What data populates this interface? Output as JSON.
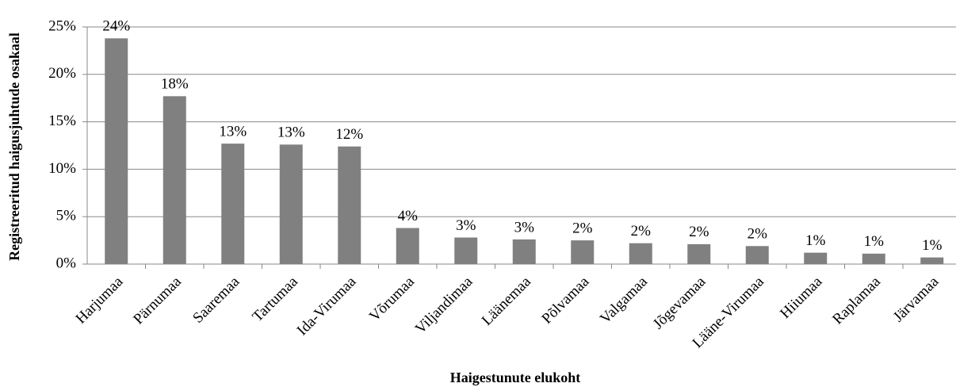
{
  "chart_data": {
    "type": "bar",
    "x_label": "Haigestunute elukoht",
    "y_label": "Registreeritud haigusjuhtude osakaal",
    "categories": [
      "Harjumaa",
      "Pärnumaa",
      "Saaremaa",
      "Tartumaa",
      "Ida-Virumaa",
      "Võrumaa",
      "Viljandimaa",
      "Läänemaa",
      "Põlvamaa",
      "Valgamaa",
      "Jõgevamaa",
      "Lääne-Virumaa",
      "Hiiumaa",
      "Raplamaa",
      "Järvamaa"
    ],
    "values": [
      23.8,
      17.7,
      12.7,
      12.6,
      12.4,
      3.8,
      2.8,
      2.6,
      2.5,
      2.2,
      2.1,
      1.9,
      1.2,
      1.1,
      0.7
    ],
    "value_labels": [
      "24%",
      "18%",
      "13%",
      "13%",
      "12%",
      "4%",
      "3%",
      "3%",
      "2%",
      "2%",
      "2%",
      "2%",
      "1%",
      "1%",
      "1%"
    ],
    "color": "#808080",
    "ylim": [
      0,
      25
    ],
    "yticks": [
      {
        "value": 0,
        "label": "0%"
      },
      {
        "value": 5,
        "label": "5%"
      },
      {
        "value": 10,
        "label": "10%"
      },
      {
        "value": 15,
        "label": "15%"
      },
      {
        "value": 20,
        "label": "20%"
      },
      {
        "value": 25,
        "label": "25%"
      }
    ],
    "grid": true
  }
}
